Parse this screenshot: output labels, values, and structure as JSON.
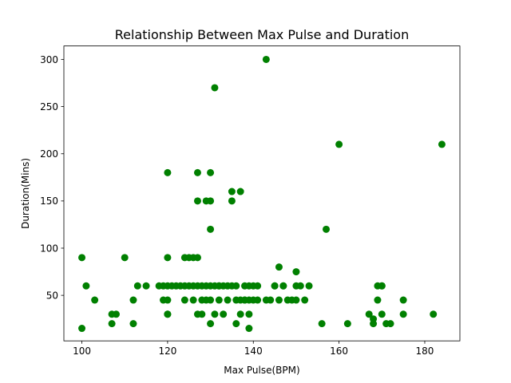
{
  "chart_data": {
    "type": "scatter",
    "title": "Relationship Between Max Pulse and Duration",
    "xlabel": "Max Pulse(BPM)",
    "ylabel": "Duration(Mins)",
    "xlim": [
      95.8,
      188.2
    ],
    "ylim": [
      1.75,
      314.25
    ],
    "xticks": [
      100,
      120,
      140,
      160,
      180
    ],
    "yticks": [
      50,
      100,
      150,
      200,
      250,
      300
    ],
    "marker_color": "#008000",
    "grid": false,
    "legend": "none",
    "series": [
      {
        "x": [
          100,
          100,
          101,
          103,
          107,
          107,
          108,
          110,
          112,
          112,
          113,
          115,
          118,
          119,
          119,
          120,
          120,
          120,
          120,
          120,
          120,
          121,
          122,
          123,
          124,
          124,
          124,
          125,
          125,
          126,
          126,
          126,
          127,
          127,
          127,
          127,
          127,
          128,
          128,
          128,
          129,
          129,
          129,
          130,
          130,
          130,
          130,
          130,
          130,
          131,
          131,
          131,
          132,
          132,
          132,
          133,
          133,
          134,
          134,
          135,
          135,
          135,
          136,
          136,
          136,
          137,
          137,
          137,
          138,
          138,
          138,
          139,
          139,
          139,
          139,
          140,
          140,
          141,
          141,
          143,
          143,
          144,
          145,
          145,
          146,
          146,
          147,
          147,
          148,
          149,
          150,
          150,
          150,
          151,
          152,
          153,
          156,
          157,
          160,
          162,
          167,
          168,
          168,
          169,
          169,
          170,
          170,
          170,
          171,
          172,
          175,
          175,
          182,
          184
        ],
        "y": [
          90,
          15,
          60,
          45,
          20,
          30,
          30,
          90,
          20,
          45,
          60,
          60,
          60,
          45,
          60,
          180,
          90,
          60,
          45,
          30,
          30,
          60,
          60,
          60,
          90,
          60,
          45,
          90,
          60,
          90,
          60,
          45,
          180,
          150,
          90,
          60,
          30,
          60,
          45,
          30,
          150,
          60,
          45,
          180,
          150,
          120,
          60,
          45,
          20,
          270,
          60,
          30,
          60,
          45,
          60,
          60,
          30,
          60,
          45,
          160,
          150,
          60,
          60,
          45,
          20,
          160,
          45,
          30,
          60,
          45,
          45,
          60,
          45,
          30,
          15,
          60,
          45,
          60,
          45,
          300,
          45,
          45,
          60,
          60,
          80,
          45,
          60,
          60,
          45,
          45,
          75,
          60,
          45,
          60,
          45,
          60,
          20,
          120,
          210,
          20,
          30,
          25,
          20,
          60,
          45,
          60,
          60,
          30,
          20,
          20,
          45,
          30,
          30,
          210
        ]
      }
    ]
  }
}
